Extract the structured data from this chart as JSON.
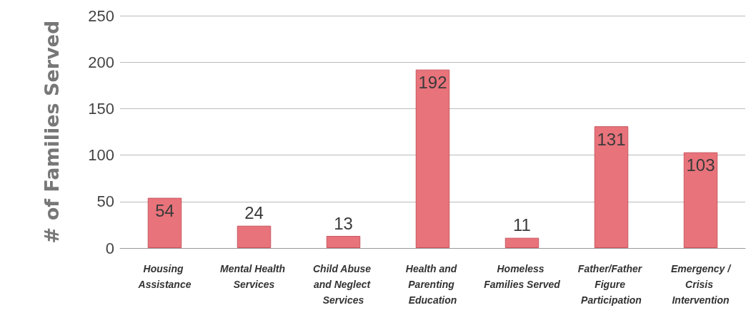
{
  "chart_data": {
    "type": "bar",
    "ylabel": "# of Families Served",
    "categories": [
      "Housing Assistance",
      "Mental Health Services",
      "Child Abuse and Neglect Services",
      "Health and Parenting Education",
      "Homeless Families Served",
      "Father/Father Figure Participation",
      "Emergency /Crisis Intervention"
    ],
    "values": [
      54,
      24,
      13,
      192,
      11,
      131,
      103
    ],
    "color": "#e8737b",
    "ylim": [
      0,
      250
    ],
    "yticks": [
      0,
      50,
      100,
      150,
      200,
      250
    ],
    "grid": "y",
    "data_labels": true
  }
}
